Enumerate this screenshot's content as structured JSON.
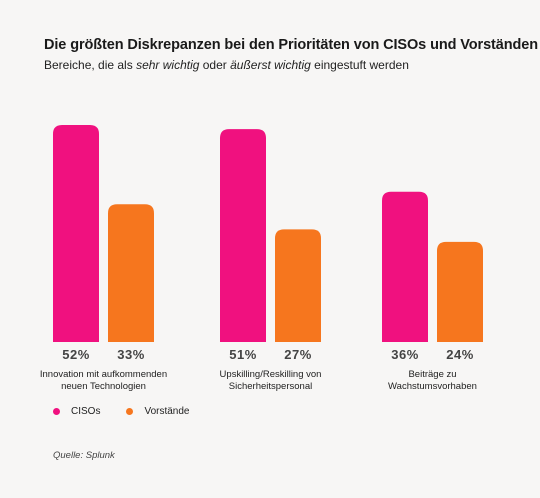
{
  "title": "Die größten Diskrepanzen bei den Prioritäten von CISOs und Vorständen",
  "subtitle": {
    "part1": "Bereiche, die als ",
    "em1": "sehr wichtig",
    "part2": " oder ",
    "em2": "äußerst wichtig",
    "part3": " eingestuft werden"
  },
  "source": "Quelle: Splunk",
  "colors": {
    "cisos": "#f0117f",
    "vorstaende": "#f6761e",
    "background": "#f7f6f5"
  },
  "chart_data": {
    "type": "bar",
    "title": "Die größten Diskrepanzen bei den Prioritäten von CISOs und Vorständen",
    "categories": [
      [
        "Innovation mit aufkommenden",
        "neuen Technologien"
      ],
      [
        "Upskilling/Reskilling von",
        "Sicherheitspersonal"
      ],
      [
        "Beiträge zu",
        "Wachstumsvorhaben"
      ]
    ],
    "series": [
      {
        "name": "CISOs",
        "values": [
          52,
          51,
          36
        ],
        "labels": [
          "52%",
          "51%",
          "36%"
        ]
      },
      {
        "name": "Vorstände",
        "values": [
          33,
          27,
          24
        ],
        "labels": [
          "33%",
          "27%",
          "24%"
        ]
      }
    ],
    "unit": "%",
    "xlabel": "",
    "ylabel": "",
    "ylim": [
      0,
      52
    ],
    "grid": false,
    "legend": "bottom-left"
  }
}
